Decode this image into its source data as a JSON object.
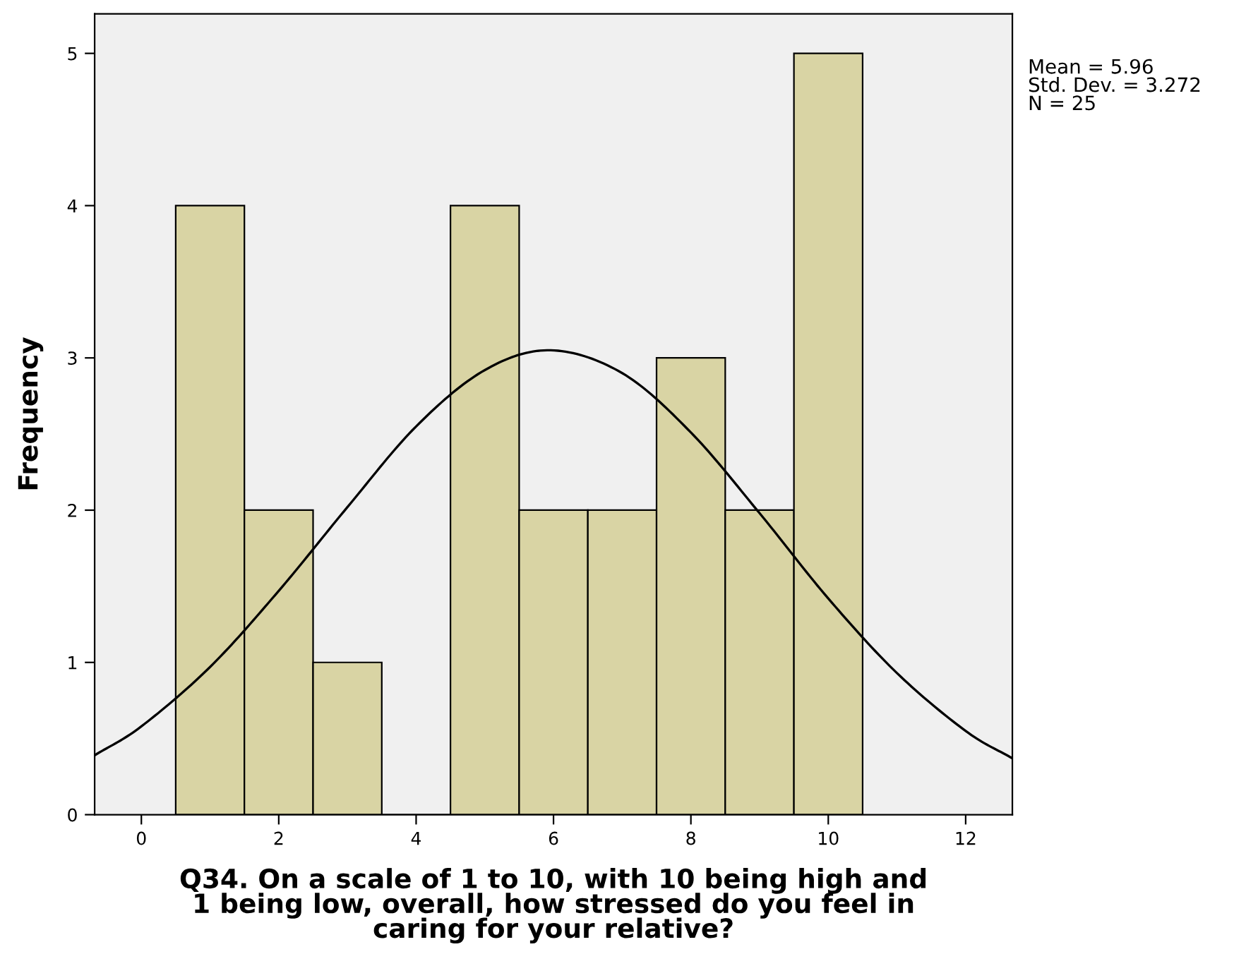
{
  "chart_data": {
    "type": "histogram",
    "xlabel": "Q34. On a scale of 1 to 10, with 10 being high and\n1 being low, overall, how stressed do you feel in\ncaring for your relative?",
    "ylabel": "Frequency",
    "annotations": [
      "Mean = 5.96\nStd. Dev. = 3.272\nN = 25"
    ],
    "series": [
      {
        "bins": [
          0.5,
          1.5,
          2.5,
          3.5,
          4.5,
          5.5,
          6.5,
          7.5,
          8.5,
          9.5,
          10.5
        ],
        "values": [
          4,
          2,
          1,
          0,
          4,
          2,
          2,
          3,
          2,
          5
        ],
        "color": "#d9d4a4"
      },
      {
        "type": "line",
        "x": [
          -0.68,
          0,
          1,
          2,
          3,
          4,
          5,
          5.96,
          7,
          8,
          9,
          10,
          11,
          12,
          12.68
        ],
        "values": [
          0.39,
          0.58,
          0.97,
          1.47,
          2.02,
          2.55,
          2.92,
          3.05,
          2.9,
          2.51,
          1.98,
          1.42,
          0.93,
          0.55,
          0.37
        ],
        "color": "#000000"
      }
    ],
    "xlim": [
      -0.68,
      12.68
    ],
    "ylim": [
      0,
      5.26
    ],
    "xticks": [
      0,
      2,
      4,
      6,
      8,
      10,
      12
    ],
    "yticks": [
      0,
      1,
      2,
      3,
      4,
      5
    ],
    "grid": false,
    "legend": false,
    "marker": "none",
    "line_style": "solid"
  }
}
